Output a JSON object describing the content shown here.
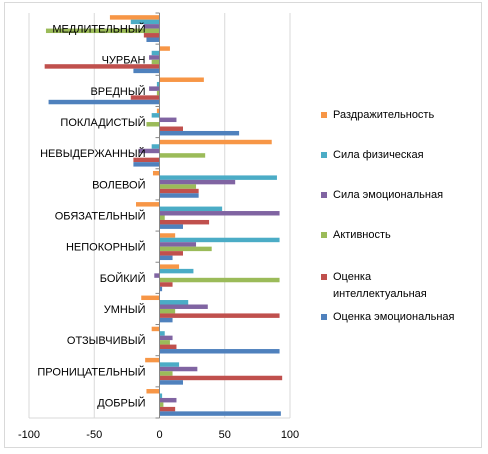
{
  "chart_data": {
    "type": "bar",
    "orientation": "horizontal",
    "categories": [
      "МЕДЛИТЕЛЬНЫЙ",
      "ЧУРБАН",
      "ВРЕДНЫЙ",
      "ПОКЛАДИСТЫЙ",
      "НЕВЫДЕРЖАННЫЙ",
      "ВОЛЕВОЙ",
      "ОБЯЗАТЕЛЬНЫЙ",
      "НЕПОКОРНЫЙ",
      "БОЙКИЙ",
      "УМНЫЙ",
      "ОТЗЫВЧИВЫЙ",
      "ПРОНИЦАТЕЛЬНЫЙ",
      "ДОБРЫЙ"
    ],
    "xlim": [
      -100,
      100
    ],
    "xticks": [
      -100,
      -50,
      0,
      50,
      100
    ],
    "grid": true,
    "legend_position": "right",
    "series": [
      {
        "name": "Раздражительность",
        "color": "#f79646",
        "values": [
          -38,
          8,
          34,
          -2,
          86,
          -5,
          -18,
          12,
          15,
          -14,
          -6,
          -11,
          -10
        ]
      },
      {
        "name": "Сила физическая",
        "color": "#4bacc6",
        "values": [
          -22,
          -6,
          -2,
          -6,
          -6,
          90,
          48,
          92,
          26,
          22,
          4,
          15,
          2
        ]
      },
      {
        "name": "Сила эмоциональная",
        "color": "#8064a2",
        "values": [
          -12,
          -8,
          -8,
          13,
          -16,
          58,
          92,
          28,
          -4,
          37,
          10,
          29,
          13
        ]
      },
      {
        "name": "Активность",
        "color": "#9bbb59",
        "values": [
          -87,
          -6,
          -2,
          -10,
          35,
          28,
          4,
          40,
          92,
          12,
          8,
          10,
          3
        ]
      },
      {
        "name": "Оценка интеллектуальная",
        "color": "#c0504d",
        "values": [
          -12,
          -88,
          -22,
          18,
          -20,
          30,
          38,
          18,
          10,
          92,
          13,
          94,
          12
        ]
      },
      {
        "name": "Оценка эмоциональная",
        "color": "#4f81bd",
        "values": [
          -10,
          -20,
          -85,
          61,
          -20,
          30,
          18,
          10,
          2,
          10,
          92,
          18,
          93
        ]
      }
    ]
  }
}
